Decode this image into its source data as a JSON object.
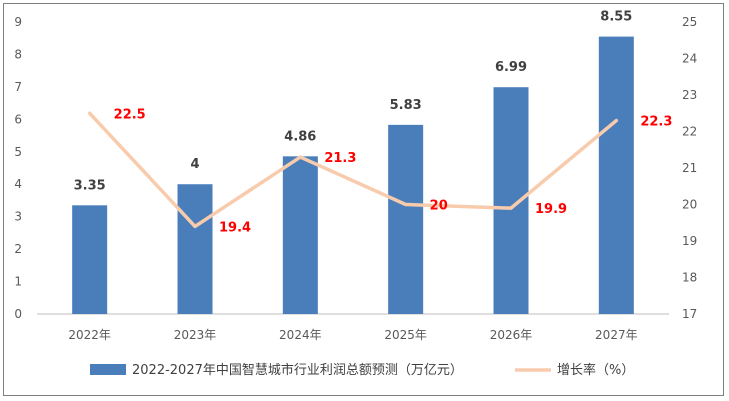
{
  "chart_data": {
    "type": "bar",
    "categories": [
      "2022年",
      "2023年",
      "2024年",
      "2025年",
      "2026年",
      "2027年"
    ],
    "series": [
      {
        "name": "2022-2027年中国智慧城市行业利润总额预测（万亿元）",
        "type": "bar",
        "axis": "left",
        "values": [
          3.35,
          4,
          4.86,
          5.83,
          6.99,
          8.55
        ],
        "labels": [
          "3.35",
          "4",
          "4.86",
          "5.83",
          "6.99",
          "8.55"
        ],
        "color": "#4a7ebb"
      },
      {
        "name": "增长率（%）",
        "type": "line",
        "axis": "right",
        "values": [
          22.5,
          19.4,
          21.3,
          20,
          19.9,
          22.3
        ],
        "labels": [
          "22.5",
          "19.4",
          "21.3",
          "20",
          "19.9",
          "22.3"
        ],
        "color": "#f8cbad"
      }
    ],
    "y_left": {
      "min": 0,
      "max": 9,
      "step": 1,
      "ticks": [
        "0",
        "1",
        "2",
        "3",
        "4",
        "5",
        "6",
        "7",
        "8",
        "9"
      ]
    },
    "y_right": {
      "min": 17,
      "max": 25,
      "step": 1,
      "ticks": [
        "17",
        "18",
        "19",
        "20",
        "21",
        "22",
        "23",
        "24",
        "25"
      ]
    },
    "grid": false,
    "legend_position": "bottom",
    "title": "",
    "xlabel": "",
    "ylabel": "",
    "line_label_color": "#ff0000"
  }
}
